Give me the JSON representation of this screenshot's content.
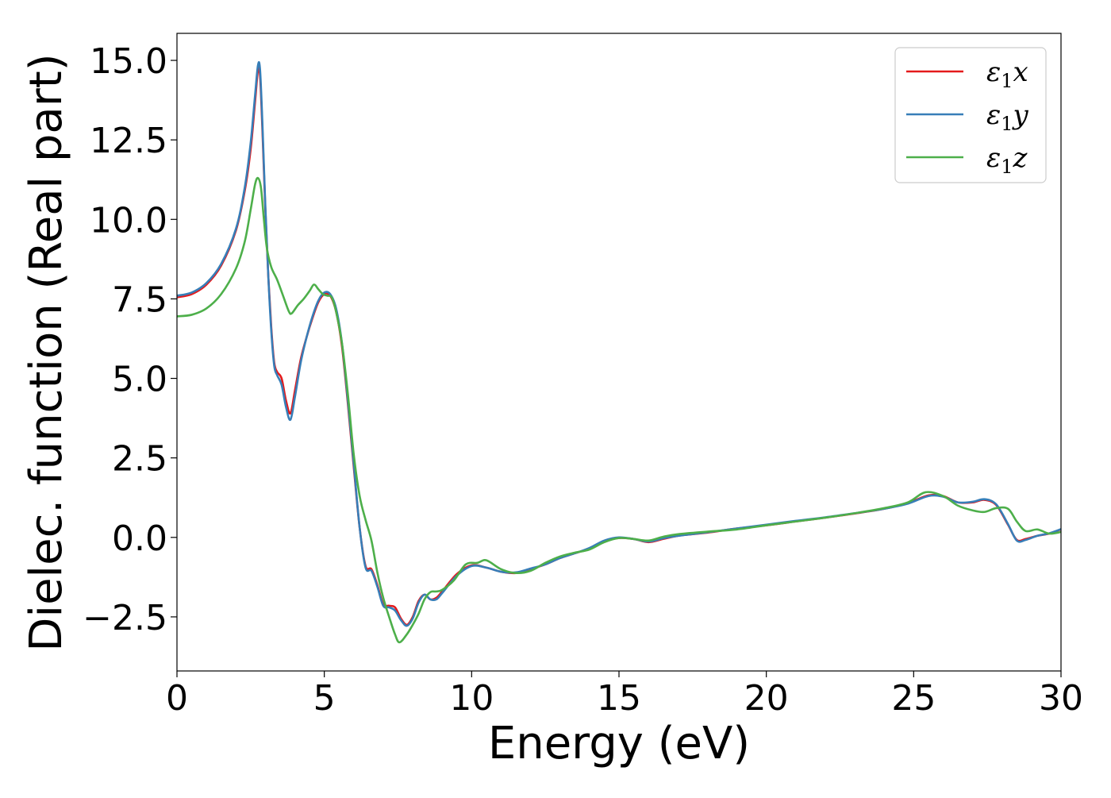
{
  "chart_data": {
    "type": "line",
    "title": "",
    "xlabel": "Energy (eV)",
    "ylabel": "Dielec. function (Real part)",
    "xlim": [
      0,
      30
    ],
    "ylim": [
      -4.2,
      15.85
    ],
    "xticks": [
      0,
      5,
      10,
      15,
      20,
      25,
      30
    ],
    "xtick_labels": [
      "0",
      "5",
      "10",
      "15",
      "20",
      "25",
      "30"
    ],
    "yticks": [
      -2.5,
      0.0,
      2.5,
      5.0,
      7.5,
      10.0,
      12.5,
      15.0
    ],
    "ytick_labels": [
      "−2.5",
      "0.0",
      "2.5",
      "5.0",
      "7.5",
      "10.0",
      "12.5",
      "15.0"
    ],
    "grid": false,
    "legend_position": "top-right",
    "series": [
      {
        "name": "ε1x",
        "legend_main": "ε",
        "legend_sub": "1",
        "legend_suffix": "x",
        "color": "#e41a1c",
        "points": [
          [
            0,
            7.55
          ],
          [
            0.5,
            7.65
          ],
          [
            1.0,
            7.95
          ],
          [
            1.5,
            8.55
          ],
          [
            2.0,
            9.65
          ],
          [
            2.3,
            10.9
          ],
          [
            2.5,
            12.2
          ],
          [
            2.65,
            13.7
          ],
          [
            2.75,
            14.7
          ],
          [
            2.82,
            14.5
          ],
          [
            2.9,
            12.8
          ],
          [
            3.0,
            10.3
          ],
          [
            3.1,
            8.2
          ],
          [
            3.2,
            6.6
          ],
          [
            3.3,
            5.5
          ],
          [
            3.4,
            5.2
          ],
          [
            3.55,
            5.0
          ],
          [
            3.7,
            4.3
          ],
          [
            3.85,
            3.9
          ],
          [
            4.0,
            4.6
          ],
          [
            4.2,
            5.6
          ],
          [
            4.4,
            6.3
          ],
          [
            4.6,
            6.9
          ],
          [
            4.8,
            7.4
          ],
          [
            5.0,
            7.65
          ],
          [
            5.2,
            7.6
          ],
          [
            5.4,
            7.1
          ],
          [
            5.6,
            6.0
          ],
          [
            5.8,
            4.2
          ],
          [
            6.0,
            2.2
          ],
          [
            6.2,
            0.3
          ],
          [
            6.4,
            -0.9
          ],
          [
            6.6,
            -1.0
          ],
          [
            6.8,
            -1.5
          ],
          [
            7.0,
            -2.1
          ],
          [
            7.2,
            -2.15
          ],
          [
            7.4,
            -2.2
          ],
          [
            7.6,
            -2.55
          ],
          [
            7.8,
            -2.75
          ],
          [
            8.0,
            -2.5
          ],
          [
            8.2,
            -2.0
          ],
          [
            8.4,
            -1.8
          ],
          [
            8.6,
            -1.95
          ],
          [
            8.8,
            -1.9
          ],
          [
            9.0,
            -1.7
          ],
          [
            9.5,
            -1.15
          ],
          [
            10.0,
            -0.88
          ],
          [
            10.5,
            -0.95
          ],
          [
            11.0,
            -1.08
          ],
          [
            11.5,
            -1.12
          ],
          [
            12.0,
            -1.0
          ],
          [
            12.5,
            -0.85
          ],
          [
            13.0,
            -0.65
          ],
          [
            13.5,
            -0.5
          ],
          [
            14.0,
            -0.35
          ],
          [
            14.5,
            -0.12
          ],
          [
            15.0,
            -0.02
          ],
          [
            15.5,
            -0.05
          ],
          [
            16.0,
            -0.15
          ],
          [
            16.5,
            -0.05
          ],
          [
            17.0,
            0.05
          ],
          [
            18.0,
            0.15
          ],
          [
            19.0,
            0.28
          ],
          [
            20.0,
            0.38
          ],
          [
            21.0,
            0.5
          ],
          [
            22.0,
            0.62
          ],
          [
            23.0,
            0.75
          ],
          [
            24.0,
            0.9
          ],
          [
            24.8,
            1.08
          ],
          [
            25.5,
            1.32
          ],
          [
            26.0,
            1.3
          ],
          [
            26.5,
            1.1
          ],
          [
            27.0,
            1.1
          ],
          [
            27.4,
            1.18
          ],
          [
            27.8,
            1.02
          ],
          [
            28.2,
            0.4
          ],
          [
            28.5,
            -0.08
          ],
          [
            28.8,
            -0.05
          ],
          [
            29.2,
            0.05
          ],
          [
            29.6,
            0.12
          ],
          [
            30.0,
            0.25
          ]
        ]
      },
      {
        "name": "ε1y",
        "legend_main": "ε",
        "legend_sub": "1",
        "legend_suffix": "y",
        "color": "#377eb8",
        "points": [
          [
            0,
            7.6
          ],
          [
            0.5,
            7.7
          ],
          [
            1.0,
            8.0
          ],
          [
            1.5,
            8.6
          ],
          [
            2.0,
            9.7
          ],
          [
            2.3,
            11.0
          ],
          [
            2.5,
            12.4
          ],
          [
            2.65,
            13.9
          ],
          [
            2.75,
            14.85
          ],
          [
            2.82,
            14.7
          ],
          [
            2.9,
            13.0
          ],
          [
            3.0,
            10.4
          ],
          [
            3.1,
            8.2
          ],
          [
            3.2,
            6.5
          ],
          [
            3.3,
            5.4
          ],
          [
            3.4,
            5.1
          ],
          [
            3.55,
            4.8
          ],
          [
            3.7,
            4.1
          ],
          [
            3.85,
            3.7
          ],
          [
            4.0,
            4.4
          ],
          [
            4.2,
            5.5
          ],
          [
            4.4,
            6.3
          ],
          [
            4.6,
            6.95
          ],
          [
            4.8,
            7.45
          ],
          [
            5.0,
            7.7
          ],
          [
            5.2,
            7.65
          ],
          [
            5.4,
            7.2
          ],
          [
            5.6,
            6.1
          ],
          [
            5.8,
            4.3
          ],
          [
            6.0,
            2.3
          ],
          [
            6.2,
            0.3
          ],
          [
            6.4,
            -0.95
          ],
          [
            6.6,
            -1.05
          ],
          [
            6.8,
            -1.55
          ],
          [
            7.0,
            -2.15
          ],
          [
            7.2,
            -2.2
          ],
          [
            7.4,
            -2.3
          ],
          [
            7.6,
            -2.6
          ],
          [
            7.8,
            -2.78
          ],
          [
            8.0,
            -2.55
          ],
          [
            8.2,
            -2.05
          ],
          [
            8.4,
            -1.8
          ],
          [
            8.6,
            -1.95
          ],
          [
            8.8,
            -1.95
          ],
          [
            9.0,
            -1.75
          ],
          [
            9.5,
            -1.2
          ],
          [
            10.0,
            -0.9
          ],
          [
            10.5,
            -0.95
          ],
          [
            11.0,
            -1.08
          ],
          [
            11.5,
            -1.1
          ],
          [
            12.0,
            -0.98
          ],
          [
            12.5,
            -0.85
          ],
          [
            13.0,
            -0.65
          ],
          [
            13.5,
            -0.5
          ],
          [
            14.0,
            -0.33
          ],
          [
            14.5,
            -0.1
          ],
          [
            15.0,
            0.0
          ],
          [
            15.5,
            -0.05
          ],
          [
            16.0,
            -0.13
          ],
          [
            16.5,
            -0.03
          ],
          [
            17.0,
            0.05
          ],
          [
            18.0,
            0.16
          ],
          [
            19.0,
            0.28
          ],
          [
            20.0,
            0.4
          ],
          [
            21.0,
            0.52
          ],
          [
            22.0,
            0.63
          ],
          [
            23.0,
            0.76
          ],
          [
            24.0,
            0.9
          ],
          [
            24.8,
            1.06
          ],
          [
            25.5,
            1.3
          ],
          [
            26.0,
            1.28
          ],
          [
            26.5,
            1.1
          ],
          [
            27.0,
            1.12
          ],
          [
            27.4,
            1.2
          ],
          [
            27.8,
            1.04
          ],
          [
            28.2,
            0.42
          ],
          [
            28.5,
            -0.1
          ],
          [
            28.8,
            -0.08
          ],
          [
            29.2,
            0.05
          ],
          [
            29.6,
            0.13
          ],
          [
            30.0,
            0.26
          ]
        ]
      },
      {
        "name": "ε1z",
        "legend_main": "ε",
        "legend_sub": "1",
        "legend_suffix": "z",
        "color": "#4daf4a",
        "points": [
          [
            0,
            6.95
          ],
          [
            0.5,
            7.0
          ],
          [
            1.0,
            7.2
          ],
          [
            1.5,
            7.65
          ],
          [
            2.0,
            8.45
          ],
          [
            2.3,
            9.3
          ],
          [
            2.5,
            10.3
          ],
          [
            2.65,
            11.1
          ],
          [
            2.75,
            11.3
          ],
          [
            2.85,
            11.0
          ],
          [
            2.95,
            10.0
          ],
          [
            3.05,
            9.1
          ],
          [
            3.2,
            8.5
          ],
          [
            3.4,
            8.1
          ],
          [
            3.6,
            7.6
          ],
          [
            3.8,
            7.1
          ],
          [
            3.9,
            7.05
          ],
          [
            4.1,
            7.3
          ],
          [
            4.3,
            7.5
          ],
          [
            4.5,
            7.75
          ],
          [
            4.65,
            7.95
          ],
          [
            4.8,
            7.8
          ],
          [
            4.95,
            7.65
          ],
          [
            5.1,
            7.6
          ],
          [
            5.25,
            7.55
          ],
          [
            5.4,
            7.1
          ],
          [
            5.6,
            6.1
          ],
          [
            5.8,
            4.5
          ],
          [
            6.0,
            2.6
          ],
          [
            6.2,
            1.3
          ],
          [
            6.4,
            0.55
          ],
          [
            6.6,
            -0.1
          ],
          [
            6.8,
            -1.1
          ],
          [
            7.0,
            -1.9
          ],
          [
            7.2,
            -2.5
          ],
          [
            7.4,
            -3.05
          ],
          [
            7.55,
            -3.3
          ],
          [
            7.8,
            -3.05
          ],
          [
            8.0,
            -2.75
          ],
          [
            8.2,
            -2.4
          ],
          [
            8.4,
            -1.95
          ],
          [
            8.6,
            -1.72
          ],
          [
            8.8,
            -1.7
          ],
          [
            9.0,
            -1.65
          ],
          [
            9.4,
            -1.35
          ],
          [
            9.8,
            -0.85
          ],
          [
            10.2,
            -0.8
          ],
          [
            10.5,
            -0.72
          ],
          [
            11.0,
            -1.0
          ],
          [
            11.5,
            -1.12
          ],
          [
            12.0,
            -1.05
          ],
          [
            12.5,
            -0.8
          ],
          [
            13.0,
            -0.6
          ],
          [
            13.5,
            -0.48
          ],
          [
            14.0,
            -0.38
          ],
          [
            14.5,
            -0.15
          ],
          [
            15.0,
            -0.02
          ],
          [
            15.5,
            -0.05
          ],
          [
            16.0,
            -0.1
          ],
          [
            16.5,
            0.02
          ],
          [
            17.0,
            0.1
          ],
          [
            18.0,
            0.18
          ],
          [
            19.0,
            0.25
          ],
          [
            20.0,
            0.38
          ],
          [
            21.0,
            0.5
          ],
          [
            22.0,
            0.62
          ],
          [
            23.0,
            0.76
          ],
          [
            24.0,
            0.92
          ],
          [
            24.8,
            1.1
          ],
          [
            25.4,
            1.42
          ],
          [
            26.0,
            1.3
          ],
          [
            26.5,
            1.0
          ],
          [
            27.0,
            0.85
          ],
          [
            27.4,
            0.8
          ],
          [
            27.8,
            0.92
          ],
          [
            28.2,
            0.9
          ],
          [
            28.5,
            0.5
          ],
          [
            28.8,
            0.2
          ],
          [
            29.2,
            0.25
          ],
          [
            29.6,
            0.12
          ],
          [
            30.0,
            0.17
          ]
        ]
      }
    ]
  }
}
